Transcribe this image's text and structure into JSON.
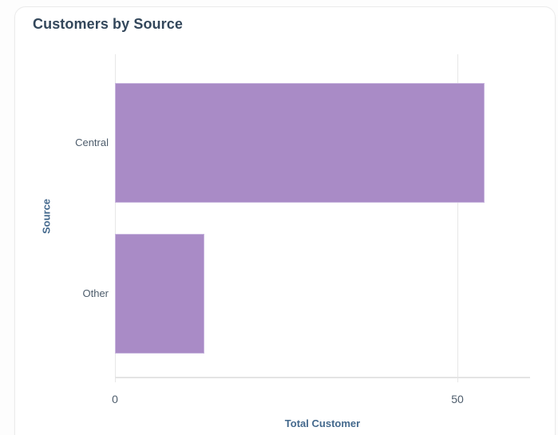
{
  "card": {
    "title": "Customers by Source"
  },
  "chart_data": {
    "type": "bar",
    "orientation": "horizontal",
    "title": "Customers by Source",
    "categories": [
      "Central",
      "Other"
    ],
    "values": [
      54,
      13
    ],
    "xlabel": "Total Customer",
    "ylabel": "Source",
    "xlim": [
      0,
      60.6
    ],
    "xticks": [
      "0",
      "50"
    ],
    "xtick_values": [
      0,
      50
    ],
    "grid": "vertical-gridlines-only",
    "legend": "none",
    "bar_color": "#a98bc6"
  },
  "colors": {
    "bar": "#a98bc6",
    "bar_border": "#c8b5de",
    "grid_line": "#e7e7e7",
    "axis_line": "#e4e4e4",
    "title_text": "#33475b",
    "tick_text": "#4e5d6c",
    "axis_title_text": "#44698d",
    "card_border": "#ebebeb",
    "card_bg": "#ffffff"
  }
}
